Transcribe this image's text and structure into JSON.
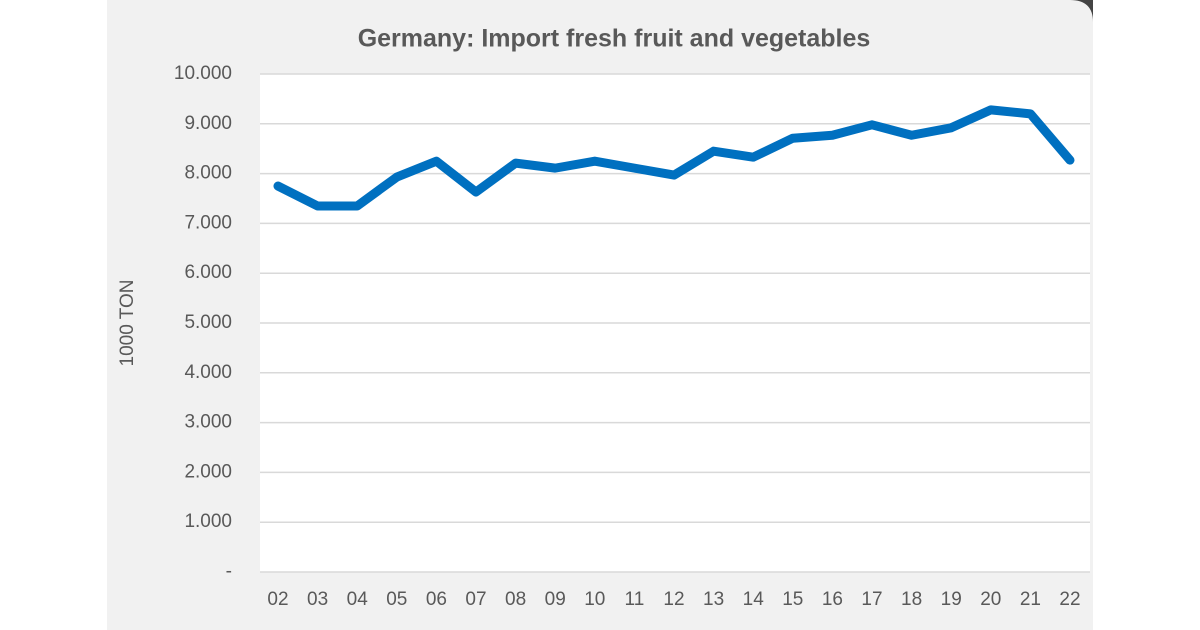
{
  "chart_data": {
    "type": "line",
    "title": "Germany: Import fresh fruit and vegetables",
    "y_label": "1000 TON",
    "categories": [
      "02",
      "03",
      "04",
      "05",
      "06",
      "07",
      "08",
      "09",
      "10",
      "11",
      "12",
      "13",
      "14",
      "15",
      "16",
      "17",
      "18",
      "19",
      "20",
      "21",
      "22"
    ],
    "series": [
      {
        "name": "Import",
        "color": "#0070c0",
        "values": [
          7750,
          7350,
          7350,
          7930,
          8250,
          7630,
          8210,
          8110,
          8250,
          8110,
          7970,
          8450,
          8330,
          8710,
          8770,
          8980,
          8770,
          8920,
          9280,
          9200,
          8270
        ]
      }
    ],
    "ylim": [
      0,
      10000
    ],
    "yticks": [
      {
        "value": 0,
        "label": "-"
      },
      {
        "value": 1000,
        "label": "1.000"
      },
      {
        "value": 2000,
        "label": "2.000"
      },
      {
        "value": 3000,
        "label": "3.000"
      },
      {
        "value": 4000,
        "label": "4.000"
      },
      {
        "value": 5000,
        "label": "5.000"
      },
      {
        "value": 6000,
        "label": "6.000"
      },
      {
        "value": 7000,
        "label": "7.000"
      },
      {
        "value": 8000,
        "label": "8.000"
      },
      {
        "value": 9000,
        "label": "9.000"
      },
      {
        "value": 10000,
        "label": "10.000"
      }
    ],
    "grid": true
  }
}
